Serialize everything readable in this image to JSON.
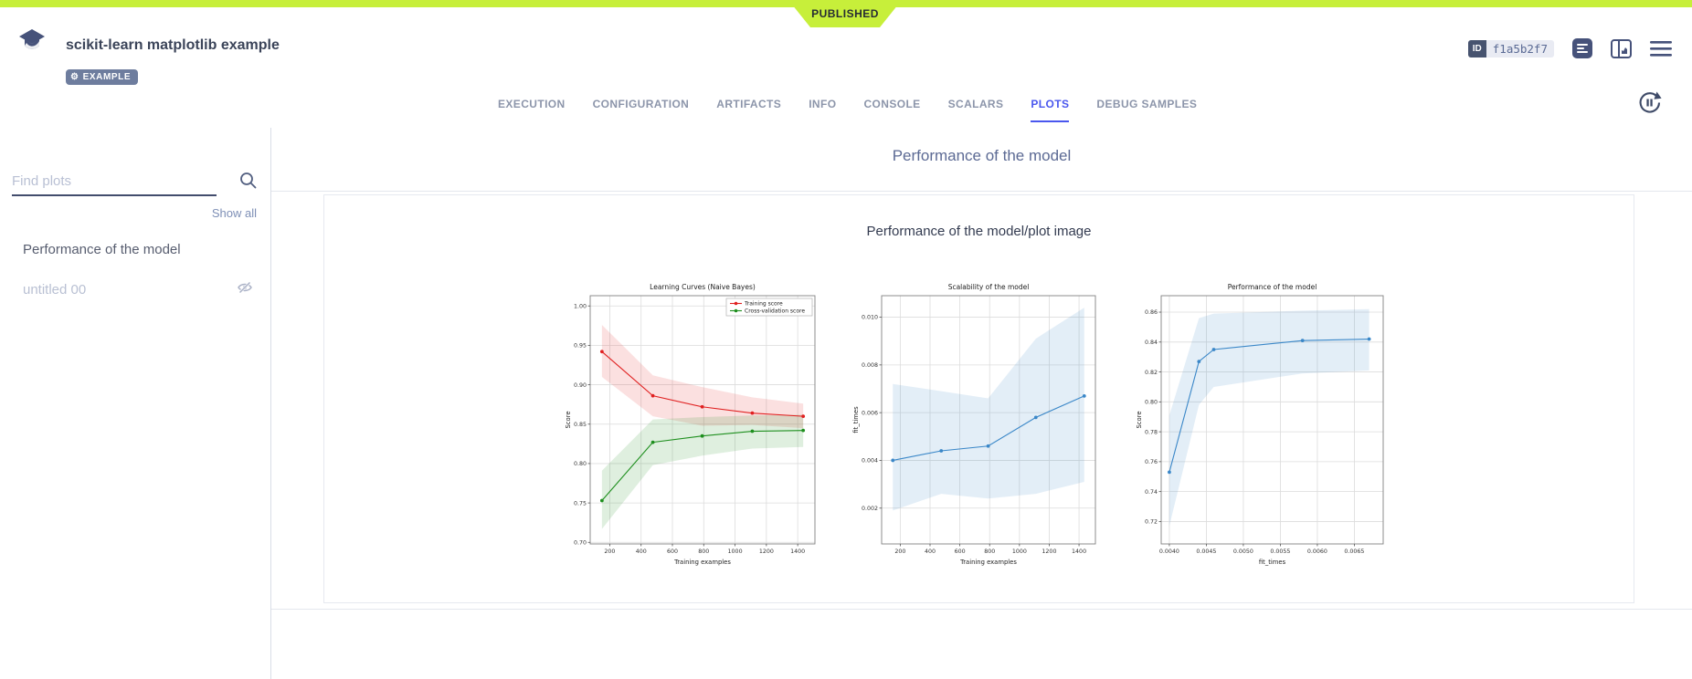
{
  "topbar": {
    "published_label": "PUBLISHED",
    "bar_color": "#c7ef3a"
  },
  "header": {
    "title": "scikit-learn matplotlib example",
    "example_badge": "EXAMPLE",
    "id_label": "ID",
    "id_value": "f1a5b2f7"
  },
  "tabs": {
    "items": [
      "EXECUTION",
      "CONFIGURATION",
      "ARTIFACTS",
      "INFO",
      "CONSOLE",
      "SCALARS",
      "PLOTS",
      "DEBUG SAMPLES"
    ],
    "active_index": 6,
    "active_color": "#4a57ee"
  },
  "sidebar": {
    "search_placeholder": "Find plots",
    "show_all_label": "Show all",
    "items": [
      {
        "label": "Performance of the model",
        "hidden": false
      },
      {
        "label": "untitled 00",
        "hidden": true
      }
    ]
  },
  "main": {
    "section_title": "Performance of the model",
    "card_title": "Performance of the model/plot image"
  },
  "chart_data": [
    {
      "type": "line",
      "title": "Learning Curves (Naive Bayes)",
      "xlabel": "Training examples",
      "ylabel": "Score",
      "xlim": [
        75,
        1510
      ],
      "ylim": [
        0.698,
        1.013
      ],
      "xticks": [
        "200",
        "400",
        "600",
        "800",
        "1000",
        "1200",
        "1400"
      ],
      "yticks": [
        "0.70",
        "0.75",
        "0.80",
        "0.85",
        "0.90",
        "0.95",
        "1.00"
      ],
      "grid": true,
      "legend": true,
      "legend_position": "upper right",
      "x": [
        150,
        475,
        790,
        1110,
        1435
      ],
      "series": [
        {
          "name": "Training score",
          "color": "#e02020",
          "values": [
            0.942,
            0.886,
            0.872,
            0.864,
            0.86
          ],
          "band_low": [
            0.91,
            0.86,
            0.848,
            0.849,
            0.845
          ],
          "band_high": [
            0.976,
            0.912,
            0.897,
            0.884,
            0.876
          ]
        },
        {
          "name": "Cross-validation score",
          "color": "#1e8f1e",
          "values": [
            0.753,
            0.827,
            0.835,
            0.841,
            0.842
          ],
          "band_low": [
            0.717,
            0.798,
            0.81,
            0.819,
            0.821
          ],
          "band_high": [
            0.791,
            0.856,
            0.859,
            0.861,
            0.862
          ]
        }
      ]
    },
    {
      "type": "line",
      "title": "Scalability of the model",
      "xlabel": "Training examples",
      "ylabel": "fit_times",
      "xlim": [
        75,
        1510
      ],
      "ylim": [
        0.0005,
        0.0109
      ],
      "xticks": [
        "200",
        "400",
        "600",
        "800",
        "1000",
        "1200",
        "1400"
      ],
      "yticks": [
        "0.002",
        "0.004",
        "0.006",
        "0.008",
        "0.010"
      ],
      "grid": true,
      "legend": false,
      "x": [
        150,
        475,
        790,
        1110,
        1435
      ],
      "series": [
        {
          "name": "fit_times",
          "color": "#3a87c8",
          "values": [
            0.004,
            0.0044,
            0.0046,
            0.0058,
            0.0067
          ],
          "band_low": [
            0.0019,
            0.0026,
            0.0024,
            0.0026,
            0.0031
          ],
          "band_high": [
            0.0072,
            0.0069,
            0.0066,
            0.0091,
            0.0104
          ]
        }
      ]
    },
    {
      "type": "line",
      "title": "Performance of the model",
      "xlabel": "fit_times",
      "ylabel": "Score",
      "xlim": [
        0.00389,
        0.00689
      ],
      "ylim": [
        0.705,
        0.871
      ],
      "xticks": [
        "0.0040",
        "0.0045",
        "0.0050",
        "0.0055",
        "0.0060",
        "0.0065"
      ],
      "yticks": [
        "0.72",
        "0.74",
        "0.76",
        "0.78",
        "0.80",
        "0.82",
        "0.84",
        "0.86"
      ],
      "grid": true,
      "legend": false,
      "x": [
        0.004,
        0.0044,
        0.0046,
        0.0058,
        0.0067
      ],
      "series": [
        {
          "name": "Score",
          "color": "#3a87c8",
          "values": [
            0.753,
            0.827,
            0.835,
            0.841,
            0.842
          ],
          "band_low": [
            0.717,
            0.798,
            0.81,
            0.819,
            0.821
          ],
          "band_high": [
            0.791,
            0.856,
            0.859,
            0.861,
            0.862
          ]
        }
      ]
    }
  ]
}
